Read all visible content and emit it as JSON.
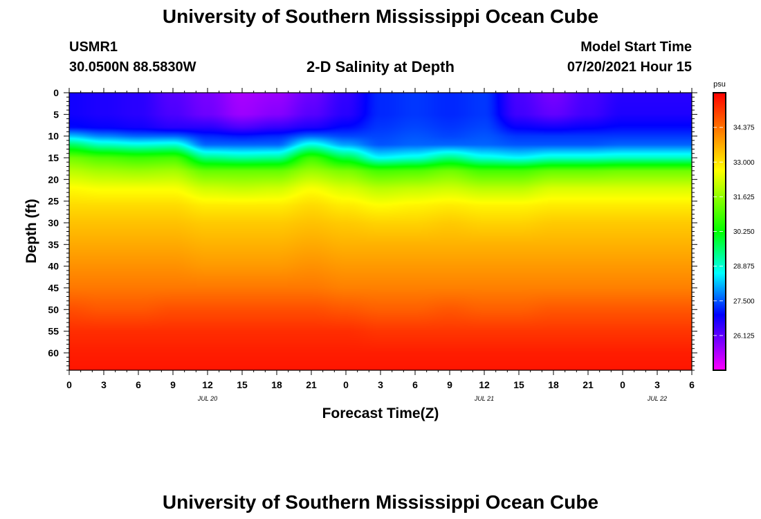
{
  "header": {
    "title": "University of Southern Mississippi Ocean Cube",
    "station_id": "USMR1",
    "coords": "30.0500N  88.5830W",
    "chart_title": "2-D Salinity at Depth",
    "model_start_label": "Model Start Time",
    "model_start_value": "07/20/2021 Hour 15"
  },
  "footer": {
    "title": "University of Southern Mississippi Ocean Cube"
  },
  "colors": {
    "background": "#ffffff",
    "axis": "#000000",
    "low": "#ff00ff",
    "high": "#ff0000"
  },
  "chart_data": {
    "type": "heatmap",
    "title": "2-D Salinity at Depth",
    "xlabel": "Forecast Time(Z)",
    "ylabel": "Depth (ft)",
    "x_range_hours": [
      0,
      54
    ],
    "x_tick_step_hours": 3,
    "x_tick_labels": [
      "0",
      "3",
      "6",
      "9",
      "12",
      "15",
      "18",
      "21",
      "0",
      "3",
      "6",
      "9",
      "12",
      "15",
      "18",
      "21",
      "0",
      "3",
      "6"
    ],
    "date_labels": [
      {
        "hour": 12,
        "text": "JUL 20"
      },
      {
        "hour": 36,
        "text": "JUL 21"
      },
      {
        "hour": 51,
        "text": "JUL 22"
      }
    ],
    "y_range_ft": [
      0,
      64
    ],
    "y_tick_labels": [
      0,
      5,
      10,
      15,
      20,
      25,
      30,
      35,
      40,
      45,
      50,
      55,
      60
    ],
    "colorbar": {
      "unit": "psu",
      "min": 24.75,
      "max": 35.75,
      "tick_labels": [
        "34.375",
        "33.000",
        "31.625",
        "30.250",
        "28.875",
        "27.500",
        "26.125"
      ]
    },
    "profiles_note": "Salinity (psu) at depth (ft) for each 3-hourly forecast time",
    "profile_depths_ft": [
      0,
      5,
      8,
      10,
      12,
      15,
      18,
      22,
      26,
      30,
      35,
      40,
      45,
      50,
      55,
      60,
      64
    ],
    "profiles": [
      {
        "hour": 0,
        "salinity": [
          26.8,
          26.8,
          27.0,
          28.2,
          29.6,
          31.3,
          32.0,
          32.7,
          33.1,
          33.4,
          33.7,
          34.0,
          34.3,
          34.8,
          35.2,
          35.4,
          35.5
        ]
      },
      {
        "hour": 3,
        "salinity": [
          26.7,
          26.7,
          26.9,
          27.8,
          29.0,
          31.0,
          31.8,
          32.6,
          33.1,
          33.4,
          33.7,
          34.0,
          34.3,
          34.7,
          35.2,
          35.4,
          35.5
        ]
      },
      {
        "hour": 6,
        "salinity": [
          26.6,
          26.6,
          26.8,
          27.6,
          28.8,
          30.8,
          31.7,
          32.6,
          33.1,
          33.4,
          33.7,
          34.0,
          34.3,
          34.7,
          35.2,
          35.4,
          35.5
        ]
      },
      {
        "hour": 9,
        "salinity": [
          26.2,
          26.3,
          26.6,
          27.6,
          28.9,
          30.9,
          31.8,
          32.6,
          33.1,
          33.4,
          33.7,
          34.0,
          34.3,
          34.8,
          35.2,
          35.4,
          35.5
        ]
      },
      {
        "hour": 12,
        "salinity": [
          25.9,
          26.0,
          26.6,
          27.2,
          27.6,
          29.4,
          31.2,
          32.2,
          32.9,
          33.3,
          33.6,
          33.9,
          34.3,
          34.8,
          35.2,
          35.4,
          35.5
        ]
      },
      {
        "hour": 15,
        "salinity": [
          25.5,
          25.6,
          26.3,
          27.1,
          27.6,
          29.2,
          31.2,
          32.1,
          32.9,
          33.3,
          33.6,
          33.9,
          34.3,
          34.8,
          35.2,
          35.4,
          35.5
        ]
      },
      {
        "hour": 18,
        "salinity": [
          25.6,
          25.8,
          26.5,
          27.2,
          27.6,
          29.3,
          31.2,
          32.2,
          32.9,
          33.3,
          33.6,
          33.9,
          34.3,
          34.8,
          35.2,
          35.4,
          35.5
        ]
      },
      {
        "hour": 21,
        "salinity": [
          26.0,
          26.2,
          26.7,
          27.6,
          28.8,
          30.8,
          31.7,
          32.6,
          33.1,
          33.4,
          33.7,
          34.0,
          34.3,
          34.8,
          35.2,
          35.4,
          35.5
        ]
      },
      {
        "hour": 24,
        "salinity": [
          26.5,
          26.6,
          27.0,
          27.4,
          28.0,
          29.8,
          31.4,
          32.3,
          32.9,
          33.3,
          33.6,
          33.9,
          34.2,
          34.7,
          35.2,
          35.4,
          35.5
        ]
      },
      {
        "hour": 27,
        "salinity": [
          27.2,
          27.2,
          27.3,
          27.4,
          27.5,
          28.6,
          30.9,
          32.0,
          32.7,
          33.2,
          33.6,
          33.9,
          34.2,
          34.6,
          35.1,
          35.4,
          35.5
        ]
      },
      {
        "hour": 30,
        "salinity": [
          27.3,
          27.3,
          27.4,
          27.5,
          27.6,
          28.8,
          31.0,
          32.1,
          32.8,
          33.2,
          33.6,
          33.9,
          34.2,
          34.6,
          35.1,
          35.4,
          35.5
        ]
      },
      {
        "hour": 33,
        "salinity": [
          27.2,
          27.2,
          27.3,
          27.4,
          27.6,
          29.4,
          31.3,
          32.2,
          32.9,
          33.3,
          33.6,
          33.9,
          34.2,
          34.7,
          35.1,
          35.4,
          35.5
        ]
      },
      {
        "hour": 36,
        "salinity": [
          27.3,
          27.3,
          27.4,
          27.5,
          27.6,
          28.8,
          30.9,
          32.0,
          32.8,
          33.2,
          33.6,
          33.9,
          34.2,
          34.6,
          35.1,
          35.4,
          35.5
        ]
      },
      {
        "hour": 39,
        "salinity": [
          26.3,
          26.4,
          26.9,
          27.3,
          27.5,
          28.6,
          30.9,
          32.0,
          32.8,
          33.2,
          33.6,
          33.9,
          34.2,
          34.6,
          35.1,
          35.4,
          35.5
        ]
      },
      {
        "hour": 42,
        "salinity": [
          25.9,
          26.1,
          26.8,
          27.3,
          27.5,
          28.9,
          31.2,
          32.3,
          32.9,
          33.3,
          33.6,
          33.9,
          34.2,
          34.7,
          35.1,
          35.4,
          35.5
        ]
      },
      {
        "hour": 45,
        "salinity": [
          26.3,
          26.4,
          26.9,
          27.3,
          27.5,
          28.9,
          31.2,
          32.3,
          32.9,
          33.3,
          33.6,
          33.9,
          34.2,
          34.7,
          35.1,
          35.4,
          35.5
        ]
      },
      {
        "hour": 48,
        "salinity": [
          26.6,
          26.7,
          27.0,
          27.3,
          27.6,
          29.0,
          31.3,
          32.3,
          32.9,
          33.3,
          33.6,
          33.9,
          34.2,
          34.7,
          35.1,
          35.4,
          35.5
        ]
      },
      {
        "hour": 51,
        "salinity": [
          26.6,
          26.7,
          27.0,
          27.3,
          27.6,
          29.0,
          31.3,
          32.3,
          32.9,
          33.3,
          33.6,
          33.9,
          34.2,
          34.7,
          35.1,
          35.4,
          35.5
        ]
      },
      {
        "hour": 54,
        "salinity": [
          26.6,
          26.7,
          27.0,
          27.3,
          27.6,
          29.0,
          31.3,
          32.3,
          32.9,
          33.3,
          33.6,
          33.9,
          34.2,
          34.7,
          35.1,
          35.4,
          35.5
        ]
      }
    ]
  }
}
